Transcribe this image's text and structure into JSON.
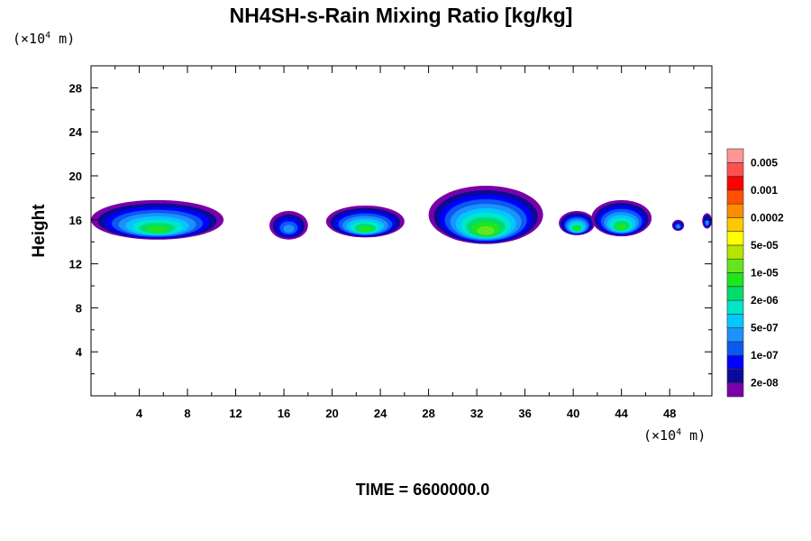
{
  "chart_data": {
    "type": "contour",
    "title": "NH4SH-s-Rain Mixing Ratio [kg/kg]",
    "ylabel": "Height",
    "x_unit": {
      "prefix": "(×10",
      "exp": "4",
      "suffix": " m)"
    },
    "y_unit": {
      "prefix": "(×10",
      "exp": "4",
      "suffix": " m)"
    },
    "xlim": [
      0,
      51.5
    ],
    "ylim": [
      0,
      30
    ],
    "x_ticks": [
      4,
      8,
      12,
      16,
      20,
      24,
      28,
      32,
      36,
      40,
      44,
      48
    ],
    "y_ticks": [
      4,
      8,
      12,
      16,
      20,
      24,
      28
    ],
    "footer": "TIME = 6600000.0",
    "colorbar": {
      "colors": [
        "#7b00a8",
        "#0a0a96",
        "#0000ff",
        "#0a5af0",
        "#1e90ff",
        "#00c8ff",
        "#00e6c8",
        "#00dc6e",
        "#1ee61e",
        "#64e61e",
        "#b4e600",
        "#ffff00",
        "#ffc800",
        "#ff8c00",
        "#ff5000",
        "#ff0000",
        "#ff5050",
        "#ff9696"
      ],
      "labels": [
        "2e-08",
        "1e-07",
        "5e-07",
        "2e-06",
        "1e-05",
        "5e-05",
        "0.0002",
        "0.001",
        "0.005"
      ]
    },
    "blobs": [
      {
        "x": [
          0,
          11
        ],
        "y": [
          14.2,
          17.8
        ],
        "peak_level": 8
      },
      {
        "x": [
          14.8,
          18
        ],
        "y": [
          14.2,
          16.8
        ],
        "peak_level": 4
      },
      {
        "x": [
          19.5,
          26
        ],
        "y": [
          14.4,
          17.3
        ],
        "peak_level": 8
      },
      {
        "x": [
          28,
          37.5
        ],
        "y": [
          13.8,
          19.1
        ],
        "peak_level": 9
      },
      {
        "x": [
          38.8,
          41.8
        ],
        "y": [
          14.6,
          16.8
        ],
        "peak_level": 8
      },
      {
        "x": [
          41.5,
          46.5
        ],
        "y": [
          14.5,
          17.8
        ],
        "peak_level": 8
      },
      {
        "x": [
          48.2,
          49.2
        ],
        "y": [
          15,
          16
        ],
        "peak_level": 4
      },
      {
        "x": [
          50.7,
          51.5
        ],
        "y": [
          15.2,
          16.6
        ],
        "peak_level": 4
      }
    ]
  }
}
